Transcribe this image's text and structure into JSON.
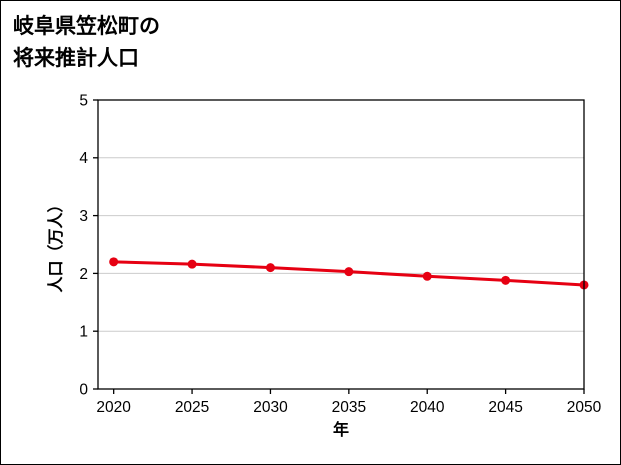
{
  "page": {
    "background": "#ffffff",
    "border_color": "#000000"
  },
  "title": {
    "line1": "岐阜県笠松町の",
    "line2": "将来推計人口"
  },
  "chart_data": {
    "type": "line",
    "title": "岐阜県笠松町の将来推計人口",
    "x": [
      2020,
      2025,
      2030,
      2035,
      2040,
      2045,
      2050
    ],
    "series": [
      {
        "name": "将来推計人口",
        "values": [
          2.2,
          2.16,
          2.1,
          2.03,
          1.95,
          1.88,
          1.8
        ],
        "color": "#e60012"
      }
    ],
    "xlabel": "年",
    "ylabel": "人口（万人）",
    "xlim": [
      2019,
      2050
    ],
    "ylim": [
      0,
      5
    ],
    "xticks": [
      2020,
      2025,
      2030,
      2035,
      2040,
      2045,
      2050
    ],
    "yticks": [
      0,
      1,
      2,
      3,
      4,
      5
    ],
    "grid": "horizontal",
    "grid_color": "#cccccc",
    "axis_color": "#000000",
    "marker": "circle",
    "legend": "none"
  }
}
